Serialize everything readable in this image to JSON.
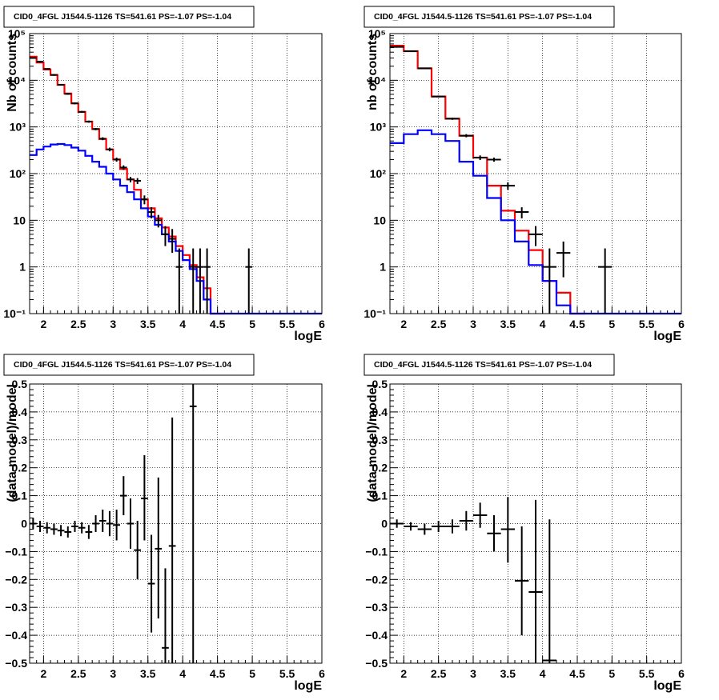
{
  "colors": {
    "total": "#ff0000",
    "component": "#0000ff",
    "data": "#000000"
  },
  "chart_data": [
    {
      "type": "step-histogram",
      "title": "CID0_4FGL J1544.5-1126 TS=541.61 PS=-1.07 PS=-1.04",
      "xlabel": "logE",
      "ylabel": "Nb of counts",
      "xlim": [
        1.8,
        6
      ],
      "ylim": [
        0.1,
        100000
      ],
      "yscale": "log",
      "xticks": [
        "2",
        "2.5",
        "3",
        "3.5",
        "4",
        "4.5",
        "5",
        "5.5",
        "6"
      ],
      "yticks": [
        "10⁻¹",
        "1",
        "10",
        "10²",
        "10³",
        "10⁴",
        "10⁵"
      ],
      "grid": true,
      "bin_edges": [
        1.8,
        1.9,
        2.0,
        2.1,
        2.2,
        2.3,
        2.4,
        2.5,
        2.6,
        2.7,
        2.8,
        2.9,
        3.0,
        3.1,
        3.2,
        3.3,
        3.4,
        3.5,
        3.6,
        3.7,
        3.8,
        3.9,
        4.0,
        4.1,
        4.2,
        4.3,
        4.4,
        4.5,
        4.6,
        4.7,
        4.8,
        4.9,
        5.0,
        5.1,
        5.2,
        5.3,
        5.4,
        5.5,
        5.6,
        5.7,
        5.8,
        5.9,
        6.0
      ],
      "series": [
        {
          "color": "total",
          "values": [
            32000,
            24000,
            17000,
            13000,
            8000,
            5200,
            3200,
            2100,
            1300,
            900,
            550,
            330,
            200,
            125,
            75,
            45,
            28,
            18,
            11,
            7,
            4.5,
            2.8,
            1.8,
            1.1,
            0.6,
            0.35,
            0.1,
            0.08,
            0,
            0,
            0,
            0,
            0,
            0,
            0,
            0,
            0,
            0,
            0,
            0,
            0,
            0
          ]
        },
        {
          "color": "component",
          "values": [
            250,
            330,
            380,
            420,
            430,
            410,
            360,
            310,
            240,
            180,
            140,
            100,
            75,
            55,
            40,
            28,
            18,
            12,
            8,
            5,
            3.5,
            2.2,
            1.4,
            0.9,
            0.5,
            0.2,
            0.1,
            0.1,
            0.1,
            0.1,
            0.1,
            0.1,
            0.1,
            0.1,
            0.1,
            0.1,
            0.1,
            0.1,
            0.1,
            0.1,
            0.1,
            0.1
          ]
        }
      ],
      "points": [
        {
          "x": 1.85,
          "y": 30000,
          "elo": 29000,
          "ehi": 31000
        },
        {
          "x": 1.95,
          "y": 25000,
          "elo": 24000,
          "ehi": 26000
        },
        {
          "x": 2.05,
          "y": 17500,
          "elo": 17000,
          "ehi": 18000
        },
        {
          "x": 2.15,
          "y": 13000,
          "elo": 12500,
          "ehi": 13500
        },
        {
          "x": 2.25,
          "y": 8000,
          "elo": 7700,
          "ehi": 8300
        },
        {
          "x": 2.35,
          "y": 5100,
          "elo": 4900,
          "ehi": 5300
        },
        {
          "x": 2.45,
          "y": 3200,
          "elo": 3050,
          "ehi": 3350
        },
        {
          "x": 2.55,
          "y": 2100,
          "elo": 2000,
          "ehi": 2200
        },
        {
          "x": 2.65,
          "y": 1300,
          "elo": 1230,
          "ehi": 1370
        },
        {
          "x": 2.75,
          "y": 900,
          "elo": 850,
          "ehi": 950
        },
        {
          "x": 2.85,
          "y": 560,
          "elo": 520,
          "ehi": 600
        },
        {
          "x": 2.95,
          "y": 330,
          "elo": 300,
          "ehi": 360
        },
        {
          "x": 3.05,
          "y": 200,
          "elo": 180,
          "ehi": 220
        },
        {
          "x": 3.15,
          "y": 135,
          "elo": 120,
          "ehi": 150
        },
        {
          "x": 3.25,
          "y": 75,
          "elo": 65,
          "ehi": 85
        },
        {
          "x": 3.35,
          "y": 70,
          "elo": 60,
          "ehi": 80
        },
        {
          "x": 3.45,
          "y": 28,
          "elo": 22,
          "ehi": 34
        },
        {
          "x": 3.55,
          "y": 15,
          "elo": 11,
          "ehi": 19
        },
        {
          "x": 3.65,
          "y": 10,
          "elo": 7,
          "ehi": 13
        },
        {
          "x": 3.75,
          "y": 5,
          "elo": 2.8,
          "ehi": 7.5
        },
        {
          "x": 3.85,
          "y": 4,
          "elo": 2,
          "ehi": 6.5
        },
        {
          "x": 3.95,
          "y": 1,
          "elo": 0.1,
          "ehi": 2.5
        },
        {
          "x": 4.15,
          "y": 1,
          "elo": 0.1,
          "ehi": 2.5
        },
        {
          "x": 4.25,
          "y": 1,
          "elo": 0.1,
          "ehi": 2.5
        },
        {
          "x": 4.35,
          "y": 1,
          "elo": 0.1,
          "ehi": 2.5
        },
        {
          "x": 4.95,
          "y": 1,
          "elo": 0.1,
          "ehi": 2.5
        }
      ]
    },
    {
      "type": "step-histogram",
      "title": "CID0_4FGL J1544.5-1126 TS=541.61 PS=-1.07 PS=-1.04",
      "xlabel": "logE",
      "ylabel": "nb of counts",
      "xlim": [
        1.8,
        6
      ],
      "ylim": [
        0.1,
        100000
      ],
      "yscale": "log",
      "xticks": [
        "2",
        "2.5",
        "3",
        "3.5",
        "4",
        "4.5",
        "5",
        "5.5",
        "6"
      ],
      "yticks": [
        "10⁻¹",
        "1",
        "10",
        "10²",
        "10³",
        "10⁴",
        "10⁵"
      ],
      "grid": true,
      "bin_edges": [
        1.8,
        2.0,
        2.2,
        2.4,
        2.6,
        2.8,
        3.0,
        3.2,
        3.4,
        3.6,
        3.8,
        4.0,
        4.2,
        4.4,
        4.6,
        4.8,
        5.0,
        5.2,
        5.4,
        5.6,
        5.8,
        6.0
      ],
      "series": [
        {
          "color": "total",
          "values": [
            55000,
            42000,
            18000,
            4500,
            1500,
            650,
            220,
            55,
            16,
            6,
            2.3,
            0.5,
            0.28,
            0.1,
            0,
            0,
            0,
            0,
            0,
            0,
            0
          ]
        },
        {
          "color": "component",
          "values": [
            450,
            700,
            850,
            700,
            500,
            180,
            90,
            30,
            10,
            3.5,
            1.1,
            0.5,
            0.15,
            0.1,
            0.1,
            0.1,
            0.1,
            0.1,
            0.1,
            0.1,
            0.1
          ]
        }
      ],
      "points": [
        {
          "x": 1.9,
          "y": 52000,
          "elo": 50000,
          "ehi": 54000
        },
        {
          "x": 2.1,
          "y": 42000,
          "elo": 40500,
          "ehi": 43500
        },
        {
          "x": 2.3,
          "y": 18000,
          "elo": 17500,
          "ehi": 18500
        },
        {
          "x": 2.5,
          "y": 4500,
          "elo": 4300,
          "ehi": 4700
        },
        {
          "x": 2.7,
          "y": 1500,
          "elo": 1420,
          "ehi": 1580
        },
        {
          "x": 2.9,
          "y": 650,
          "elo": 600,
          "ehi": 700
        },
        {
          "x": 3.1,
          "y": 220,
          "elo": 195,
          "ehi": 245
        },
        {
          "x": 3.3,
          "y": 200,
          "elo": 180,
          "ehi": 220
        },
        {
          "x": 3.5,
          "y": 55,
          "elo": 45,
          "ehi": 65
        },
        {
          "x": 3.7,
          "y": 15,
          "elo": 11,
          "ehi": 19
        },
        {
          "x": 3.9,
          "y": 5,
          "elo": 2.8,
          "ehi": 7.5
        },
        {
          "x": 4.1,
          "y": 1,
          "elo": 0.1,
          "ehi": 2.5
        },
        {
          "x": 4.3,
          "y": 2,
          "elo": 0.6,
          "ehi": 3.5
        },
        {
          "x": 4.9,
          "y": 1,
          "elo": 0.1,
          "ehi": 2.5
        }
      ]
    },
    {
      "type": "scatter-errorbar",
      "title": "CID0_4FGL J1544.5-1126 TS=541.61 PS=-1.07 PS=-1.04",
      "xlabel": "logE",
      "ylabel": "(data-model)/model",
      "xlim": [
        1.8,
        6
      ],
      "ylim": [
        -0.5,
        0.5
      ],
      "xticks": [
        "2",
        "2.5",
        "3",
        "3.5",
        "4",
        "4.5",
        "5",
        "5.5",
        "6"
      ],
      "yticks": [
        "−0.5",
        "−0.4",
        "−0.3",
        "−0.2",
        "−0.1",
        "0",
        "0.1",
        "0.2",
        "0.3",
        "0.4",
        "0.5"
      ],
      "grid": true,
      "xerr": 0.05,
      "points": [
        {
          "x": 1.85,
          "y": 0.0,
          "elo": -0.02,
          "ehi": 0.02
        },
        {
          "x": 1.95,
          "y": -0.01,
          "elo": -0.03,
          "ehi": 0.01
        },
        {
          "x": 2.05,
          "y": -0.015,
          "elo": -0.035,
          "ehi": 0.005
        },
        {
          "x": 2.15,
          "y": -0.02,
          "elo": -0.04,
          "ehi": 0.0
        },
        {
          "x": 2.25,
          "y": -0.025,
          "elo": -0.045,
          "ehi": -0.005
        },
        {
          "x": 2.35,
          "y": -0.03,
          "elo": -0.05,
          "ehi": -0.01
        },
        {
          "x": 2.45,
          "y": -0.01,
          "elo": -0.03,
          "ehi": 0.01
        },
        {
          "x": 2.55,
          "y": -0.015,
          "elo": -0.035,
          "ehi": 0.005
        },
        {
          "x": 2.65,
          "y": -0.03,
          "elo": -0.055,
          "ehi": -0.005
        },
        {
          "x": 2.75,
          "y": 0.0,
          "elo": -0.03,
          "ehi": 0.03
        },
        {
          "x": 2.85,
          "y": 0.01,
          "elo": -0.03,
          "ehi": 0.05
        },
        {
          "x": 2.95,
          "y": 0.0,
          "elo": -0.045,
          "ehi": 0.045
        },
        {
          "x": 3.05,
          "y": -0.005,
          "elo": -0.06,
          "ehi": 0.05
        },
        {
          "x": 3.15,
          "y": 0.1,
          "elo": 0.03,
          "ehi": 0.17
        },
        {
          "x": 3.25,
          "y": 0.0,
          "elo": -0.09,
          "ehi": 0.09
        },
        {
          "x": 3.35,
          "y": -0.095,
          "elo": -0.2,
          "ehi": 0.01
        },
        {
          "x": 3.45,
          "y": 0.09,
          "elo": -0.06,
          "ehi": 0.245
        },
        {
          "x": 3.55,
          "y": -0.215,
          "elo": -0.39,
          "ehi": -0.04
        },
        {
          "x": 3.65,
          "y": -0.09,
          "elo": -0.34,
          "ehi": 0.165
        },
        {
          "x": 3.75,
          "y": -0.445,
          "elo": -0.5,
          "ehi": -0.16
        },
        {
          "x": 3.85,
          "y": -0.08,
          "elo": -0.5,
          "ehi": 0.38
        },
        {
          "x": 4.15,
          "y": 0.42,
          "elo": -0.5,
          "ehi": 0.5
        }
      ]
    },
    {
      "type": "scatter-errorbar",
      "title": "CID0_4FGL J1544.5-1126 TS=541.61 PS=-1.07 PS=-1.04",
      "xlabel": "logE",
      "ylabel": "(data-model)/model",
      "xlim": [
        1.8,
        6
      ],
      "ylim": [
        -0.5,
        0.5
      ],
      "xticks": [
        "2",
        "2.5",
        "3",
        "3.5",
        "4",
        "4.5",
        "5",
        "5.5",
        "6"
      ],
      "yticks": [
        "−0.5",
        "−0.4",
        "−0.3",
        "−0.2",
        "−0.1",
        "0",
        "0.1",
        "0.2",
        "0.3",
        "0.4",
        "0.5"
      ],
      "grid": true,
      "xerr": 0.1,
      "points": [
        {
          "x": 1.9,
          "y": 0.0,
          "elo": -0.015,
          "ehi": 0.015
        },
        {
          "x": 2.1,
          "y": -0.01,
          "elo": -0.025,
          "ehi": 0.005
        },
        {
          "x": 2.3,
          "y": -0.02,
          "elo": -0.04,
          "ehi": 0.0
        },
        {
          "x": 2.5,
          "y": -0.01,
          "elo": -0.03,
          "ehi": 0.01
        },
        {
          "x": 2.7,
          "y": -0.01,
          "elo": -0.035,
          "ehi": 0.015
        },
        {
          "x": 2.9,
          "y": 0.01,
          "elo": -0.025,
          "ehi": 0.045
        },
        {
          "x": 3.1,
          "y": 0.03,
          "elo": -0.015,
          "ehi": 0.075
        },
        {
          "x": 3.3,
          "y": -0.035,
          "elo": -0.1,
          "ehi": 0.03
        },
        {
          "x": 3.5,
          "y": -0.02,
          "elo": -0.14,
          "ehi": 0.095
        },
        {
          "x": 3.7,
          "y": -0.205,
          "elo": -0.4,
          "ehi": -0.01
        },
        {
          "x": 3.9,
          "y": -0.245,
          "elo": -0.5,
          "ehi": 0.085
        },
        {
          "x": 4.1,
          "y": -0.49,
          "elo": -0.5,
          "ehi": 0.015
        }
      ]
    }
  ]
}
